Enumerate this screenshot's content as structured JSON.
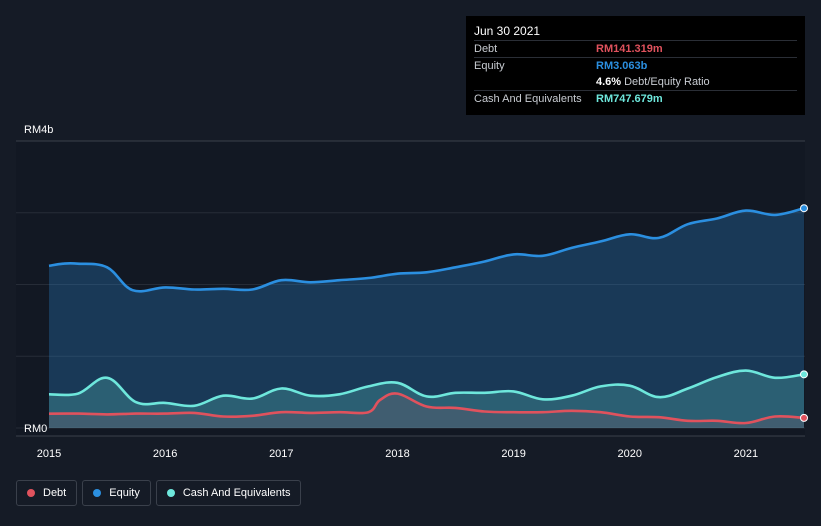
{
  "tooltip": {
    "date": "Jun 30 2021",
    "debt_label": "Debt",
    "debt_value": "RM141.319m",
    "equity_label": "Equity",
    "equity_value": "RM3.063b",
    "ratio_value": "4.6%",
    "ratio_label": "Debt/Equity Ratio",
    "cash_label": "Cash And Equivalents",
    "cash_value": "RM747.679m"
  },
  "legend": {
    "debt": "Debt",
    "equity": "Equity",
    "cash": "Cash And Equivalents"
  },
  "colors": {
    "debt": "#e0525d",
    "equity": "#2b8fe0",
    "cash": "#6ee7dc",
    "background": "#151b26"
  },
  "chart_data": {
    "type": "area",
    "title": "",
    "xlabel": "",
    "ylabel": "",
    "y_max_label": "RM4b",
    "y_min_label": "RM0",
    "ylim": [
      0,
      4.0
    ],
    "y_unit": "RM billions",
    "x_ticks": [
      "2015",
      "2016",
      "2017",
      "2018",
      "2019",
      "2020",
      "2021"
    ],
    "xlim": [
      2015.0,
      2021.5
    ],
    "series": [
      {
        "name": "Equity",
        "key": "equity",
        "points": [
          [
            2015.0,
            2.26
          ],
          [
            2015.12,
            2.29
          ],
          [
            2015.25,
            2.29
          ],
          [
            2015.5,
            2.24
          ],
          [
            2015.72,
            1.92
          ],
          [
            2016.0,
            1.96
          ],
          [
            2016.25,
            1.93
          ],
          [
            2016.5,
            1.94
          ],
          [
            2016.75,
            1.93
          ],
          [
            2017.0,
            2.06
          ],
          [
            2017.25,
            2.03
          ],
          [
            2017.5,
            2.06
          ],
          [
            2017.75,
            2.09
          ],
          [
            2018.0,
            2.15
          ],
          [
            2018.25,
            2.17
          ],
          [
            2018.5,
            2.24
          ],
          [
            2018.75,
            2.32
          ],
          [
            2019.0,
            2.42
          ],
          [
            2019.25,
            2.4
          ],
          [
            2019.5,
            2.51
          ],
          [
            2019.75,
            2.6
          ],
          [
            2020.0,
            2.7
          ],
          [
            2020.25,
            2.65
          ],
          [
            2020.5,
            2.84
          ],
          [
            2020.75,
            2.92
          ],
          [
            2021.0,
            3.03
          ],
          [
            2021.25,
            2.97
          ],
          [
            2021.5,
            3.063
          ]
        ]
      },
      {
        "name": "Cash And Equivalents",
        "key": "cash",
        "points": [
          [
            2015.0,
            0.47
          ],
          [
            2015.25,
            0.48
          ],
          [
            2015.5,
            0.7
          ],
          [
            2015.75,
            0.36
          ],
          [
            2016.0,
            0.35
          ],
          [
            2016.25,
            0.31
          ],
          [
            2016.5,
            0.45
          ],
          [
            2016.75,
            0.41
          ],
          [
            2017.0,
            0.55
          ],
          [
            2017.25,
            0.45
          ],
          [
            2017.5,
            0.47
          ],
          [
            2017.75,
            0.58
          ],
          [
            2018.0,
            0.63
          ],
          [
            2018.25,
            0.44
          ],
          [
            2018.5,
            0.49
          ],
          [
            2018.75,
            0.49
          ],
          [
            2019.0,
            0.51
          ],
          [
            2019.25,
            0.4
          ],
          [
            2019.5,
            0.45
          ],
          [
            2019.75,
            0.58
          ],
          [
            2020.0,
            0.59
          ],
          [
            2020.25,
            0.43
          ],
          [
            2020.5,
            0.55
          ],
          [
            2020.75,
            0.71
          ],
          [
            2021.0,
            0.8
          ],
          [
            2021.25,
            0.7
          ],
          [
            2021.5,
            0.748
          ]
        ]
      },
      {
        "name": "Debt",
        "key": "debt",
        "points": [
          [
            2015.0,
            0.2
          ],
          [
            2015.25,
            0.2
          ],
          [
            2015.5,
            0.19
          ],
          [
            2015.75,
            0.2
          ],
          [
            2016.0,
            0.2
          ],
          [
            2016.25,
            0.21
          ],
          [
            2016.5,
            0.16
          ],
          [
            2016.75,
            0.17
          ],
          [
            2017.0,
            0.22
          ],
          [
            2017.25,
            0.21
          ],
          [
            2017.5,
            0.22
          ],
          [
            2017.75,
            0.22
          ],
          [
            2017.85,
            0.39
          ],
          [
            2018.0,
            0.48
          ],
          [
            2018.25,
            0.3
          ],
          [
            2018.5,
            0.28
          ],
          [
            2018.75,
            0.23
          ],
          [
            2019.0,
            0.22
          ],
          [
            2019.25,
            0.22
          ],
          [
            2019.5,
            0.24
          ],
          [
            2019.75,
            0.22
          ],
          [
            2020.0,
            0.16
          ],
          [
            2020.25,
            0.15
          ],
          [
            2020.5,
            0.1
          ],
          [
            2020.75,
            0.1
          ],
          [
            2021.0,
            0.07
          ],
          [
            2021.25,
            0.16
          ],
          [
            2021.5,
            0.141
          ]
        ]
      }
    ]
  }
}
